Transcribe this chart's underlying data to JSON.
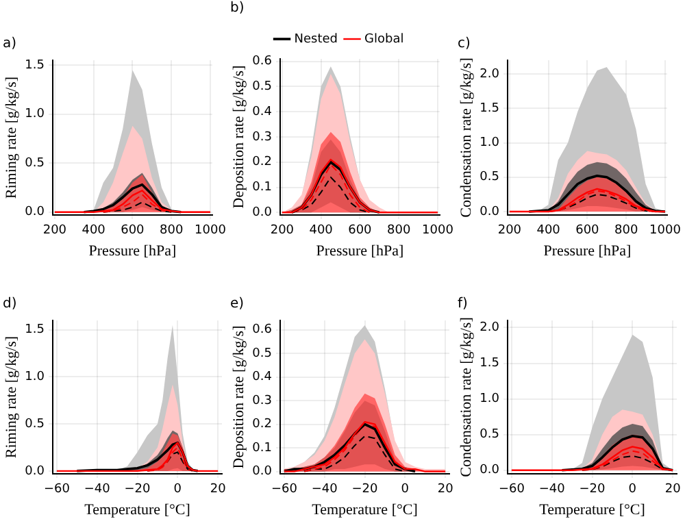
{
  "chart_data": [
    {
      "type": "line",
      "title": "a)",
      "xlabel": "Pressure [hPa]",
      "ylabel": "Riming rate [g/kg/s]",
      "grid": true,
      "marker": "none",
      "xlim": [
        190,
        1010
      ],
      "xticks": [
        200,
        400,
        600,
        800,
        1000
      ],
      "ylim": [
        -0.03,
        1.55
      ],
      "yticks": [
        {
          "value": 0,
          "label": "0.0"
        },
        {
          "value": 0.5,
          "label": "0.5"
        },
        {
          "value": 1,
          "label": "1.0"
        },
        {
          "value": 1.5,
          "label": "1.5"
        }
      ],
      "x": [
        200,
        250,
        300,
        350,
        400,
        450,
        500,
        550,
        600,
        650,
        700,
        750,
        800,
        850,
        900,
        950,
        1000
      ],
      "series": [
        {
          "color": "#000000",
          "line_style": "dashed",
          "values": [
            null,
            null,
            null,
            null,
            null,
            0,
            0.01,
            0.02,
            0.05,
            0.1,
            0.05,
            0.01,
            0,
            null,
            null,
            null,
            null
          ],
          "lower": [
            0,
            0,
            0,
            0,
            0,
            0,
            0,
            0,
            0,
            0,
            0,
            0,
            0,
            0,
            0,
            0,
            0
          ],
          "upper": [
            0,
            0,
            0,
            0,
            0.02,
            0.3,
            0.45,
            0.85,
            1.45,
            1.25,
            0.7,
            0.25,
            0.03,
            0,
            0,
            0,
            0
          ]
        },
        {
          "color": "#ff0000",
          "line_style": "dashed",
          "values": [
            null,
            null,
            null,
            null,
            null,
            0,
            0.01,
            0.05,
            0.1,
            0.18,
            0.08,
            0.02,
            0,
            null,
            null,
            null,
            null
          ],
          "lower": [
            0,
            0,
            0,
            0,
            0,
            0,
            0,
            0,
            0,
            0,
            0,
            0,
            0,
            0,
            0,
            0,
            0
          ],
          "upper": [
            0,
            0,
            0,
            0,
            0,
            0.1,
            0.3,
            0.6,
            0.88,
            0.75,
            0.35,
            0.1,
            0.02,
            0.01,
            0.01,
            0.01,
            0.01
          ]
        },
        {
          "color": "#000000",
          "line_style": "solid",
          "values": [
            null,
            null,
            null,
            0,
            0.01,
            0.03,
            0.07,
            0.15,
            0.24,
            0.28,
            0.18,
            0.05,
            0.01,
            0,
            null,
            null,
            null
          ],
          "lower": [
            0,
            0,
            0,
            0,
            0,
            0,
            0,
            0,
            0.02,
            0.05,
            0.02,
            0,
            0,
            0,
            0,
            0,
            0
          ],
          "upper": [
            0,
            0,
            0,
            0,
            0.01,
            0.04,
            0.1,
            0.2,
            0.33,
            0.4,
            0.25,
            0.07,
            0.01,
            0,
            0,
            0,
            0
          ]
        },
        {
          "color": "#ff0000",
          "line_style": "solid",
          "values": [
            0,
            0,
            0,
            0,
            0,
            0.01,
            0.02,
            0.08,
            0.17,
            0.22,
            0.12,
            0.03,
            0.01,
            0,
            0,
            0,
            0
          ],
          "lower": [
            0,
            0,
            0,
            0,
            0,
            0,
            0,
            0,
            0,
            0,
            0,
            0,
            0,
            0,
            0,
            0,
            0
          ],
          "upper": [
            0,
            0,
            0,
            0,
            0,
            0.02,
            0.06,
            0.15,
            0.3,
            0.38,
            0.2,
            0.05,
            0.01,
            0,
            0,
            0,
            0
          ]
        }
      ]
    },
    {
      "type": "line",
      "title": "b)",
      "xlabel": "Pressure [hPa]",
      "ylabel": "Deposition rate [g/kg/s]",
      "grid": true,
      "marker": "none",
      "legend": "top",
      "xlim": [
        190,
        1010
      ],
      "xticks": [
        200,
        400,
        600,
        800,
        1000
      ],
      "ylim": [
        -0.01,
        0.61
      ],
      "yticks": [
        {
          "value": 0,
          "label": "0.0"
        },
        {
          "value": 0.1,
          "label": "0.1"
        },
        {
          "value": 0.2,
          "label": "0.2"
        },
        {
          "value": 0.3,
          "label": "0.3"
        },
        {
          "value": 0.4,
          "label": "0.4"
        },
        {
          "value": 0.5,
          "label": "0.5"
        },
        {
          "value": 0.6,
          "label": "0.6"
        }
      ],
      "x": [
        200,
        250,
        300,
        350,
        400,
        450,
        500,
        550,
        600,
        650,
        700,
        750,
        800,
        850,
        900,
        950,
        1000
      ],
      "series": [
        {
          "color": "#000000",
          "line_style": "dashed",
          "values": [
            null,
            0,
            0.01,
            0.03,
            0.08,
            0.14,
            0.1,
            0.04,
            0.01,
            0,
            null,
            null,
            null,
            null,
            null,
            null,
            null
          ],
          "lower": [
            0,
            0,
            0,
            0,
            0,
            0,
            0,
            0,
            0,
            0,
            0,
            0,
            0,
            0,
            0,
            0,
            0
          ],
          "upper": [
            0,
            0.01,
            0.06,
            0.25,
            0.5,
            0.58,
            0.5,
            0.3,
            0.13,
            0.04,
            0.01,
            0,
            0,
            0,
            0,
            0,
            0
          ]
        },
        {
          "color": "#ff0000",
          "line_style": "dashed",
          "values": [
            null,
            0,
            0.01,
            0.05,
            0.12,
            0.19,
            0.15,
            0.07,
            0.02,
            0,
            null,
            null,
            null,
            null,
            null,
            null,
            null
          ],
          "lower": [
            0,
            0,
            0,
            0,
            0,
            0,
            0,
            0,
            0,
            0,
            0,
            0,
            0,
            0,
            0,
            0,
            0
          ],
          "upper": [
            0,
            0.02,
            0.07,
            0.22,
            0.45,
            0.55,
            0.47,
            0.28,
            0.13,
            0.05,
            0.02,
            0,
            0,
            0,
            0,
            0,
            0
          ]
        },
        {
          "name": "Nested",
          "color": "#000000",
          "line_style": "solid",
          "values": [
            null,
            0,
            0.02,
            0.07,
            0.15,
            0.2,
            0.17,
            0.1,
            0.04,
            0.01,
            0,
            null,
            null,
            null,
            null,
            null,
            null
          ],
          "lower": [
            0,
            0,
            0,
            0,
            0.02,
            0.04,
            0.02,
            0,
            0,
            0,
            0,
            0,
            0,
            0,
            0,
            0,
            0
          ],
          "upper": [
            0,
            0.01,
            0.03,
            0.1,
            0.24,
            0.29,
            0.24,
            0.13,
            0.05,
            0.01,
            0,
            0,
            0,
            0,
            0,
            0,
            0
          ]
        },
        {
          "name": "Global",
          "color": "#ff0000",
          "line_style": "solid",
          "values": [
            0,
            0,
            0.02,
            0.07,
            0.16,
            0.21,
            0.18,
            0.1,
            0.04,
            0.01,
            0,
            0,
            0,
            0,
            0,
            0,
            0
          ],
          "lower": [
            0,
            0,
            0,
            0,
            0,
            0,
            0,
            0,
            0,
            0,
            0,
            0,
            0,
            0,
            0,
            0,
            0
          ],
          "upper": [
            0,
            0.01,
            0.03,
            0.12,
            0.27,
            0.32,
            0.28,
            0.16,
            0.06,
            0.02,
            0,
            0,
            0,
            0,
            0,
            0,
            0
          ]
        }
      ]
    },
    {
      "type": "line",
      "title": "c)",
      "xlabel": "Pressure [hPa]",
      "ylabel": "Condensation rate [g/kg/s]",
      "grid": true,
      "marker": "none",
      "xlim": [
        190,
        1010
      ],
      "xticks": [
        200,
        400,
        600,
        800,
        1000
      ],
      "ylim": [
        -0.05,
        2.2
      ],
      "yticks": [
        {
          "value": 0,
          "label": "0.0"
        },
        {
          "value": 0.5,
          "label": "0.5"
        },
        {
          "value": 1,
          "label": "1.0"
        },
        {
          "value": 1.5,
          "label": "1.5"
        },
        {
          "value": 2,
          "label": "2.0"
        }
      ],
      "x": [
        200,
        250,
        300,
        350,
        400,
        450,
        500,
        550,
        600,
        650,
        700,
        750,
        800,
        850,
        900,
        950,
        1000
      ],
      "series": [
        {
          "color": "#000000",
          "line_style": "dashed",
          "values": [
            null,
            null,
            null,
            null,
            0,
            0.02,
            0.06,
            0.12,
            0.2,
            0.25,
            0.23,
            0.18,
            0.12,
            0.05,
            0.01,
            0,
            null
          ],
          "lower": [
            0,
            0,
            0,
            0,
            0,
            0,
            0,
            0,
            0,
            0,
            0,
            0,
            0,
            0,
            0,
            0,
            0
          ],
          "upper": [
            0,
            0,
            0,
            0.01,
            0.1,
            0.75,
            1.0,
            1.45,
            1.8,
            2.05,
            2.1,
            1.9,
            1.7,
            1.2,
            0.4,
            0.05,
            0
          ]
        },
        {
          "color": "#ff0000",
          "line_style": "dashed",
          "values": [
            null,
            null,
            null,
            null,
            0,
            0.01,
            0.07,
            0.15,
            0.25,
            0.3,
            0.28,
            0.22,
            0.15,
            0.06,
            0.01,
            0,
            null
          ],
          "lower": [
            0,
            0,
            0,
            0,
            0,
            0,
            0,
            0,
            0,
            0,
            0,
            0,
            0,
            0,
            0,
            0,
            0
          ],
          "upper": [
            0,
            0,
            0,
            0,
            0.01,
            0.2,
            0.55,
            0.75,
            0.88,
            0.85,
            0.83,
            0.75,
            0.6,
            0.35,
            0.12,
            0.02,
            0
          ]
        },
        {
          "color": "#000000",
          "line_style": "solid",
          "values": [
            null,
            null,
            0,
            0.01,
            0.02,
            0.1,
            0.25,
            0.4,
            0.48,
            0.52,
            0.5,
            0.42,
            0.3,
            0.15,
            0.05,
            0.01,
            0
          ],
          "lower": [
            0,
            0,
            0,
            0,
            0,
            0,
            0.02,
            0.05,
            0.08,
            0.08,
            0.07,
            0.05,
            0.03,
            0,
            0,
            0,
            0
          ],
          "upper": [
            0,
            0,
            0,
            0,
            0.01,
            0.15,
            0.4,
            0.58,
            0.68,
            0.72,
            0.7,
            0.62,
            0.48,
            0.28,
            0.1,
            0.01,
            0
          ]
        },
        {
          "color": "#ff0000",
          "line_style": "solid",
          "values": [
            0,
            0,
            0,
            0,
            0,
            0.02,
            0.1,
            0.2,
            0.28,
            0.33,
            0.3,
            0.25,
            0.18,
            0.08,
            0.03,
            0,
            0
          ],
          "lower": [
            0,
            0,
            0,
            0,
            0,
            0,
            0,
            0,
            0,
            0,
            0,
            0,
            0,
            0,
            0,
            0,
            0
          ],
          "upper": [
            0,
            0,
            0,
            0,
            0,
            0.03,
            0.2,
            0.35,
            0.45,
            0.5,
            0.48,
            0.4,
            0.3,
            0.15,
            0.05,
            0,
            0
          ]
        }
      ]
    },
    {
      "type": "line",
      "title": "d)",
      "xlabel": "Temperature [°C]",
      "ylabel": "Riming rate [g/kg/s]",
      "grid": true,
      "marker": "none",
      "xlim": [
        -62,
        22
      ],
      "xticks": [
        {
          "value": -60,
          "label": "−60"
        },
        {
          "value": -40,
          "label": "−40"
        },
        {
          "value": -20,
          "label": "−20"
        },
        {
          "value": 0,
          "label": "0"
        },
        {
          "value": 20,
          "label": "20"
        }
      ],
      "ylim": [
        -0.03,
        1.6
      ],
      "yticks": [
        {
          "value": 0,
          "label": "0.0"
        },
        {
          "value": 0.5,
          "label": "0.5"
        },
        {
          "value": 1,
          "label": "1.0"
        },
        {
          "value": 1.5,
          "label": "1.5"
        }
      ],
      "x": [
        -60,
        -50,
        -40,
        -30,
        -25,
        -20,
        -15,
        -10,
        -7.5,
        -5,
        -2.5,
        0,
        2.5,
        5,
        7.5,
        10,
        20
      ],
      "series": [
        {
          "color": "#000000",
          "line_style": "dashed",
          "values": [
            null,
            null,
            null,
            null,
            null,
            null,
            0,
            0.02,
            0.05,
            0.1,
            0.18,
            0.2,
            0.1,
            0.02,
            0,
            null,
            null
          ],
          "lower": [
            0,
            0,
            0,
            0,
            0,
            0,
            0,
            0,
            0,
            0,
            0,
            0,
            0,
            0,
            0,
            0,
            0
          ],
          "upper": [
            0,
            0,
            0,
            0.01,
            0.05,
            0.2,
            0.38,
            0.5,
            0.75,
            1.2,
            1.55,
            1.0,
            0.4,
            0.1,
            0.02,
            0,
            0
          ]
        },
        {
          "color": "#ff0000",
          "line_style": "dashed",
          "values": [
            null,
            null,
            null,
            null,
            null,
            null,
            0,
            0.01,
            0.04,
            0.1,
            0.2,
            0.25,
            0.12,
            0.02,
            0,
            null,
            null
          ],
          "lower": [
            0,
            0,
            0,
            0,
            0,
            0,
            0,
            0,
            0,
            0,
            0,
            0,
            0,
            0,
            0,
            0,
            0
          ],
          "upper": [
            0,
            0,
            0,
            0,
            0.01,
            0.03,
            0.1,
            0.25,
            0.45,
            0.7,
            0.92,
            0.7,
            0.3,
            0.07,
            0.01,
            0,
            0
          ]
        },
        {
          "color": "#000000",
          "line_style": "solid",
          "values": [
            null,
            0,
            0.01,
            0.01,
            0.02,
            0.03,
            0.06,
            0.12,
            0.17,
            0.22,
            0.28,
            0.3,
            0.2,
            0.05,
            0.01,
            0,
            null
          ],
          "lower": [
            0,
            0,
            0,
            0,
            0,
            0,
            0,
            0,
            0,
            0,
            0.02,
            0.03,
            0,
            0,
            0,
            0,
            0
          ],
          "upper": [
            0,
            0,
            0,
            0,
            0.01,
            0.03,
            0.08,
            0.17,
            0.25,
            0.35,
            0.43,
            0.4,
            0.25,
            0.07,
            0.01,
            0,
            0
          ]
        },
        {
          "color": "#ff0000",
          "line_style": "solid",
          "values": [
            0,
            0,
            0,
            0,
            0,
            0,
            0.01,
            0.02,
            0.06,
            0.12,
            0.25,
            0.3,
            0.2,
            0.05,
            0.01,
            0,
            0
          ],
          "lower": [
            0,
            0,
            0,
            0,
            0,
            0,
            0,
            0,
            0,
            0,
            0,
            0,
            0,
            0,
            0,
            0,
            0
          ],
          "upper": [
            0,
            0,
            0,
            0,
            0,
            0.01,
            0.03,
            0.1,
            0.2,
            0.3,
            0.4,
            0.38,
            0.25,
            0.07,
            0.01,
            0,
            0
          ]
        }
      ]
    },
    {
      "type": "line",
      "title": "e)",
      "xlabel": "Temperature [°C]",
      "ylabel": "Deposition rate [g/kg/s]",
      "grid": true,
      "marker": "none",
      "xlim": [
        -62,
        22
      ],
      "xticks": [
        {
          "value": -60,
          "label": "−60"
        },
        {
          "value": -40,
          "label": "−40"
        },
        {
          "value": -20,
          "label": "−20"
        },
        {
          "value": 0,
          "label": "0"
        },
        {
          "value": 20,
          "label": "20"
        }
      ],
      "ylim": [
        -0.01,
        0.64
      ],
      "yticks": [
        {
          "value": 0,
          "label": "0.0"
        },
        {
          "value": 0.1,
          "label": "0.1"
        },
        {
          "value": 0.2,
          "label": "0.2"
        },
        {
          "value": 0.3,
          "label": "0.3"
        },
        {
          "value": 0.4,
          "label": "0.4"
        },
        {
          "value": 0.5,
          "label": "0.5"
        },
        {
          "value": 0.6,
          "label": "0.6"
        }
      ],
      "x": [
        -60,
        -55,
        -50,
        -45,
        -40,
        -35,
        -30,
        -25,
        -20,
        -15,
        -10,
        -5,
        0,
        5,
        10,
        15,
        20
      ],
      "series": [
        {
          "color": "#000000",
          "line_style": "dashed",
          "values": [
            null,
            null,
            0,
            0.01,
            0.01,
            0.03,
            0.06,
            0.11,
            0.15,
            0.14,
            0.07,
            0.01,
            0,
            null,
            null,
            null,
            null
          ],
          "lower": [
            0,
            0,
            0,
            0,
            0,
            0,
            0,
            0,
            0,
            0,
            0,
            0,
            0,
            0,
            0,
            0,
            0
          ],
          "upper": [
            0.01,
            0.02,
            0.04,
            0.08,
            0.15,
            0.27,
            0.42,
            0.57,
            0.62,
            0.55,
            0.35,
            0.12,
            0.03,
            0,
            0,
            0,
            0
          ]
        },
        {
          "color": "#ff0000",
          "line_style": "dashed",
          "values": [
            null,
            null,
            0,
            0.01,
            0.02,
            0.05,
            0.09,
            0.15,
            0.2,
            0.19,
            0.11,
            0.03,
            0.01,
            0,
            null,
            null,
            null
          ],
          "lower": [
            0,
            0,
            0,
            0,
            0,
            0,
            0,
            0,
            0,
            0,
            0,
            0,
            0,
            0,
            0,
            0,
            0
          ],
          "upper": [
            0.01,
            0.02,
            0.04,
            0.07,
            0.13,
            0.23,
            0.37,
            0.5,
            0.56,
            0.5,
            0.33,
            0.13,
            0.04,
            0.02,
            0.01,
            0.01,
            0.01
          ]
        },
        {
          "color": "#000000",
          "line_style": "solid",
          "values": [
            0,
            0.01,
            0.01,
            0.02,
            0.04,
            0.07,
            0.11,
            0.16,
            0.2,
            0.18,
            0.1,
            0.03,
            0.01,
            0,
            null,
            null,
            null
          ],
          "lower": [
            0,
            0,
            0,
            0,
            0,
            0.01,
            0.01,
            0.02,
            0.03,
            0.03,
            0.01,
            0,
            0,
            0,
            0,
            0,
            0
          ],
          "upper": [
            0.01,
            0.01,
            0.02,
            0.03,
            0.06,
            0.1,
            0.17,
            0.25,
            0.3,
            0.28,
            0.17,
            0.05,
            0.01,
            0,
            0,
            0,
            0
          ]
        },
        {
          "color": "#ff0000",
          "line_style": "solid",
          "values": [
            0,
            0,
            0.01,
            0.02,
            0.03,
            0.06,
            0.1,
            0.16,
            0.21,
            0.2,
            0.12,
            0.04,
            0.01,
            0.01,
            0,
            0,
            0
          ],
          "lower": [
            0,
            0,
            0,
            0,
            0,
            0,
            0,
            0,
            0,
            0,
            0,
            0,
            0,
            0,
            0,
            0,
            0
          ],
          "upper": [
            0.01,
            0.01,
            0.02,
            0.03,
            0.06,
            0.11,
            0.18,
            0.27,
            0.33,
            0.31,
            0.2,
            0.07,
            0.02,
            0.01,
            0,
            0,
            0
          ]
        }
      ]
    },
    {
      "type": "line",
      "title": "f)",
      "xlabel": "Temperature [°C]",
      "ylabel": "Condensation rate [g/kg/s]",
      "grid": true,
      "marker": "none",
      "xlim": [
        -62,
        22
      ],
      "xticks": [
        {
          "value": -60,
          "label": "−60"
        },
        {
          "value": -40,
          "label": "−40"
        },
        {
          "value": -20,
          "label": "−20"
        },
        {
          "value": 0,
          "label": "0"
        },
        {
          "value": 20,
          "label": "20"
        }
      ],
      "ylim": [
        -0.05,
        2.1
      ],
      "yticks": [
        {
          "value": 0,
          "label": "0.0"
        },
        {
          "value": 0.5,
          "label": "0.5"
        },
        {
          "value": 1,
          "label": "1.0"
        },
        {
          "value": 1.5,
          "label": "1.5"
        },
        {
          "value": 2,
          "label": "2.0"
        }
      ],
      "x": [
        -60,
        -55,
        -50,
        -45,
        -40,
        -35,
        -30,
        -25,
        -20,
        -15,
        -10,
        -5,
        0,
        5,
        10,
        15,
        20
      ],
      "series": [
        {
          "color": "#000000",
          "line_style": "dashed",
          "values": [
            null,
            null,
            null,
            null,
            null,
            null,
            null,
            0,
            0.01,
            0.05,
            0.12,
            0.18,
            0.2,
            0.17,
            0.1,
            0.01,
            0
          ],
          "lower": [
            0,
            0,
            0,
            0,
            0,
            0,
            0,
            0,
            0,
            0,
            0,
            0,
            0,
            0,
            0,
            0,
            0
          ],
          "upper": [
            0,
            0,
            0,
            0,
            0,
            0,
            0.01,
            0.1,
            0.6,
            1.0,
            1.3,
            1.6,
            1.9,
            1.8,
            1.3,
            0.1,
            0
          ]
        },
        {
          "color": "#ff0000",
          "line_style": "dashed",
          "values": [
            null,
            null,
            null,
            null,
            null,
            null,
            null,
            0,
            0.01,
            0.06,
            0.14,
            0.22,
            0.27,
            0.24,
            0.13,
            0.01,
            0
          ],
          "lower": [
            0,
            0,
            0,
            0,
            0,
            0,
            0,
            0,
            0,
            0,
            0,
            0,
            0,
            0,
            0,
            0,
            0
          ],
          "upper": [
            0,
            0,
            0,
            0,
            0,
            0,
            0,
            0.02,
            0.15,
            0.5,
            0.75,
            0.85,
            0.82,
            0.78,
            0.5,
            0.05,
            0
          ]
        },
        {
          "color": "#000000",
          "line_style": "solid",
          "values": [
            null,
            null,
            null,
            null,
            null,
            0,
            0.01,
            0.02,
            0.06,
            0.18,
            0.32,
            0.43,
            0.48,
            0.46,
            0.3,
            0.03,
            0
          ],
          "lower": [
            0,
            0,
            0,
            0,
            0,
            0,
            0,
            0,
            0,
            0.01,
            0.03,
            0.05,
            0.06,
            0.05,
            0.03,
            0,
            0
          ],
          "upper": [
            0,
            0,
            0,
            0,
            0,
            0,
            0.01,
            0.03,
            0.1,
            0.3,
            0.48,
            0.6,
            0.65,
            0.62,
            0.42,
            0.04,
            0
          ]
        },
        {
          "color": "#ff0000",
          "line_style": "solid",
          "values": [
            0,
            0,
            0,
            0,
            0,
            0,
            0,
            0.01,
            0.02,
            0.08,
            0.18,
            0.28,
            0.33,
            0.3,
            0.18,
            0.02,
            0
          ],
          "lower": [
            0,
            0,
            0,
            0,
            0,
            0,
            0,
            0,
            0,
            0,
            0,
            0,
            0,
            0,
            0,
            0,
            0
          ],
          "upper": [
            0,
            0,
            0,
            0,
            0,
            0,
            0,
            0.01,
            0.05,
            0.2,
            0.35,
            0.45,
            0.5,
            0.48,
            0.3,
            0.03,
            0
          ]
        }
      ]
    }
  ]
}
